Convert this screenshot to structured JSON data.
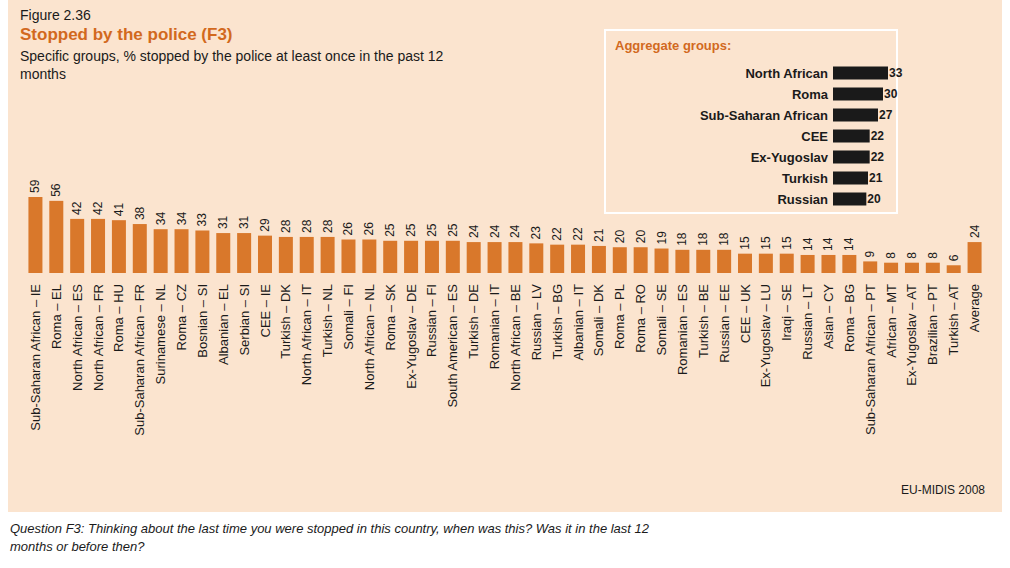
{
  "figure": "Figure 2.36",
  "source": "EU-MIDIS 2008",
  "note": "Question F3: Thinking about the last time you were stopped in this country, when was this? Was it in the last 12 months or before then?",
  "chart_data": [
    {
      "type": "bar",
      "title": "Stopped by the police (F3)",
      "subtitle": "Specific groups, % stopped by the police at least once in the past 12 months",
      "categories": [
        "Sub-Saharan African – IE",
        "Roma – EL",
        "North African – ES",
        "North African – FR",
        "Roma – HU",
        "Sub-Saharan African – FR",
        "Surinamese – NL",
        "Roma – CZ",
        "Bosnian – SI",
        "Albanian – EL",
        "Serbian – SI",
        "CEE – IE",
        "Turkish – DK",
        "North African – IT",
        "Turkish – NL",
        "Somali – FI",
        "North African – NL",
        "Roma – SK",
        "Ex-Yugoslav – DE",
        "Russian – FI",
        "South American – ES",
        "Turkish – DE",
        "Romanian – IT",
        "North African – BE",
        "Russian – LV",
        "Turkish – BG",
        "Albanian – IT",
        "Somali – DK",
        "Roma – PL",
        "Roma – RO",
        "Somali – SE",
        "Romanian – ES",
        "Turkish – BE",
        "Russian – EE",
        "CEE – UK",
        "Ex-Yugoslav – LU",
        "Iraqi – SE",
        "Russian – LT",
        "Asian – CY",
        "Roma – BG",
        "Sub-Saharan African – PT",
        "African – MT",
        "Ex-Yugoslav – AT",
        "Brazilian – PT",
        "Turkish – AT",
        "Average"
      ],
      "values": [
        59,
        56,
        42,
        42,
        41,
        38,
        34,
        34,
        33,
        31,
        31,
        29,
        28,
        28,
        28,
        26,
        26,
        25,
        25,
        25,
        25,
        24,
        24,
        24,
        23,
        22,
        22,
        21,
        20,
        20,
        19,
        18,
        18,
        18,
        15,
        15,
        15,
        14,
        14,
        14,
        9,
        8,
        8,
        8,
        6,
        24
      ],
      "color": "#d9782b",
      "ylim": [
        0,
        59
      ],
      "yticks": [],
      "tick_labels": "x",
      "data_labels": true,
      "grid": false
    },
    {
      "type": "bar",
      "orientation": "horizontal",
      "title": "Aggregate groups:",
      "categories": [
        "North African",
        "Roma",
        "Sub-Saharan African",
        "CEE",
        "Ex-Yugoslav",
        "Turkish",
        "Russian"
      ],
      "values": [
        33,
        30,
        27,
        22,
        22,
        21,
        20
      ],
      "color": "#1a1a1a",
      "xlim": [
        0,
        33
      ],
      "xticks": [],
      "tick_labels": "y",
      "data_labels": true,
      "grid": false
    }
  ]
}
